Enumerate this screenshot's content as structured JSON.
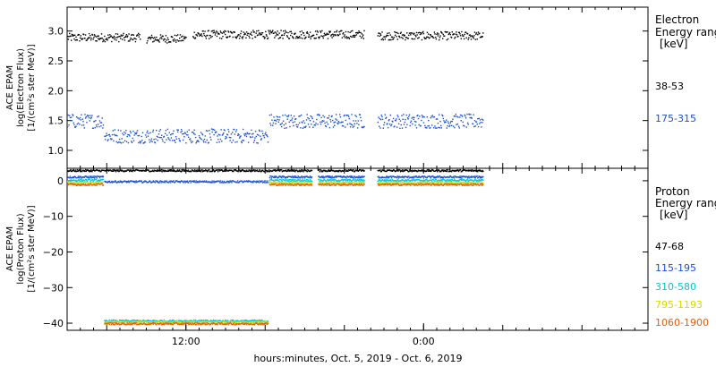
{
  "chart_data": [
    {
      "type": "scatter",
      "ylabel_lines": [
        "ACE EPAM",
        "log(Electron Flux)",
        "[1/(cm²s ster MeV)]"
      ],
      "ylim": [
        0.7,
        3.4
      ],
      "yticks": [
        1.0,
        1.5,
        2.0,
        2.5,
        3.0
      ],
      "ytick_labels": [
        "1.0",
        "1.5",
        "2.0",
        "2.5",
        "3.0"
      ],
      "xlim": [
        0,
        44
      ],
      "legend": {
        "title_lines": [
          "Electron",
          "Energy ranges"
        ],
        "unit": "[keV]",
        "placement": "right"
      },
      "series": [
        {
          "name": "38-53",
          "color": "#000000",
          "segments": [
            [
              0,
              5.5,
              2.9
            ],
            [
              6,
              9,
              2.88
            ],
            [
              9.5,
              22.5,
              2.95
            ],
            [
              23.5,
              31.5,
              2.93
            ]
          ]
        },
        {
          "name": "175-315",
          "color": "#1a50d8",
          "segments": [
            [
              0,
              2.7,
              1.5
            ],
            [
              2.8,
              15.2,
              1.25
            ],
            [
              15.3,
              22.5,
              1.5
            ],
            [
              23.5,
              31.5,
              1.5
            ]
          ]
        }
      ]
    },
    {
      "type": "scatter",
      "ylabel_lines": [
        "ACE EPAM",
        "log(Proton Flux)",
        "[1/(cm²s ster MeV)]"
      ],
      "ylim": [
        -42,
        3.5
      ],
      "yticks": [
        0,
        -10,
        -20,
        -30,
        -40
      ],
      "ytick_labels": [
        "0",
        "−10",
        "−20",
        "−30",
        "−40"
      ],
      "xlim": [
        0,
        44
      ],
      "x_tick_values": [
        9,
        27
      ],
      "x_tick_labels": [
        "12:00",
        "0:00"
      ],
      "xlabel": "hours:minutes, Oct.  5, 2019 - Oct.  6, 2019",
      "legend": {
        "title_lines": [
          "Proton",
          "Energy ranges"
        ],
        "unit": "[keV]",
        "placement": "right"
      },
      "series": [
        {
          "name": "47-68",
          "color": "#000000",
          "segments": [
            [
              0,
              18.5,
              3.0
            ],
            [
              19,
              22.5,
              3.0
            ],
            [
              23.5,
              31.5,
              3.0
            ]
          ]
        },
        {
          "name": "115-195",
          "color": "#1a50d8",
          "segments": [
            [
              0,
              2.7,
              1.2
            ],
            [
              2.8,
              15.2,
              -0.1
            ],
            [
              15.3,
              18.5,
              1.2
            ],
            [
              19,
              22.5,
              1.2
            ],
            [
              23.5,
              31.5,
              1.2
            ]
          ]
        },
        {
          "name": "310-580",
          "color": "#00c8d0",
          "segments": [
            [
              0,
              2.7,
              0.3
            ],
            [
              2.8,
              15.2,
              -39.2
            ],
            [
              15.3,
              18.5,
              0.3
            ],
            [
              19,
              22.5,
              0.3
            ],
            [
              23.5,
              31.5,
              0.3
            ]
          ]
        },
        {
          "name": "795-1193",
          "color": "#d8d800",
          "segments": [
            [
              0,
              2.7,
              -0.4
            ],
            [
              2.8,
              15.2,
              -39.6
            ],
            [
              15.3,
              18.5,
              -0.4
            ],
            [
              19,
              22.5,
              -0.4
            ],
            [
              23.5,
              31.5,
              -0.4
            ]
          ]
        },
        {
          "name": "1060-1900",
          "color": "#e06010",
          "segments": [
            [
              0,
              2.7,
              -0.9
            ],
            [
              2.8,
              15.2,
              -40.0
            ],
            [
              15.3,
              18.5,
              -0.9
            ],
            [
              19,
              22.5,
              -0.9
            ],
            [
              23.5,
              31.5,
              -0.9
            ]
          ]
        }
      ]
    }
  ]
}
